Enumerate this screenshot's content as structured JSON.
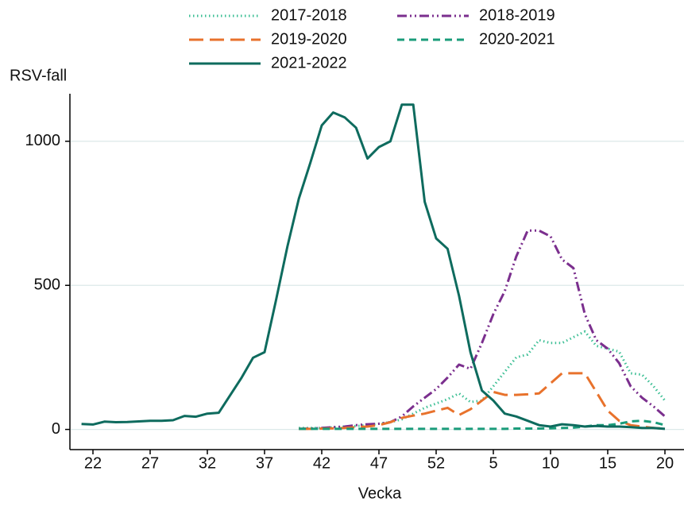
{
  "chart_data": {
    "type": "line",
    "x_label": "Vecka",
    "y_label": "RSV-fall",
    "categories": [
      null,
      "22",
      null,
      null,
      null,
      null,
      "27",
      null,
      null,
      null,
      null,
      "32",
      null,
      null,
      null,
      null,
      "37",
      null,
      null,
      null,
      null,
      "42",
      null,
      null,
      null,
      null,
      "47",
      null,
      null,
      null,
      null,
      "52",
      null,
      null,
      null,
      null,
      "5",
      null,
      null,
      null,
      null,
      "10",
      null,
      null,
      null,
      null,
      "15",
      null,
      null,
      null,
      null,
      "20"
    ],
    "ylim": [
      -70,
      1165
    ],
    "yticks": [
      0,
      500,
      1000
    ],
    "grid": true,
    "legend": "top",
    "series": [
      {
        "name": "2017-2018",
        "color": "#3dbf95",
        "dash": "dotted",
        "values": [
          null,
          null,
          null,
          null,
          null,
          null,
          null,
          null,
          null,
          null,
          null,
          null,
          null,
          null,
          null,
          null,
          null,
          null,
          null,
          5,
          5,
          5,
          7,
          10,
          12,
          15,
          20,
          25,
          35,
          55,
          75,
          90,
          105,
          125,
          95,
          100,
          150,
          200,
          250,
          260,
          310,
          300,
          300,
          320,
          340,
          290,
          280,
          270,
          195,
          190,
          150,
          100
        ]
      },
      {
        "name": "2018-2019",
        "color": "#7b2f8e",
        "dash": "dashdot",
        "values": [
          null,
          null,
          null,
          null,
          null,
          null,
          null,
          null,
          null,
          null,
          null,
          null,
          null,
          null,
          null,
          null,
          null,
          null,
          null,
          2,
          3,
          5,
          8,
          10,
          15,
          18,
          20,
          25,
          45,
          80,
          110,
          140,
          180,
          225,
          210,
          300,
          400,
          480,
          600,
          690,
          690,
          670,
          590,
          560,
          400,
          310,
          280,
          230,
          150,
          110,
          80,
          45
        ]
      },
      {
        "name": "2019-2020",
        "color": "#e8722c",
        "dash": "longdash",
        "values": [
          null,
          null,
          null,
          null,
          null,
          null,
          null,
          null,
          null,
          null,
          null,
          null,
          null,
          null,
          null,
          null,
          null,
          null,
          null,
          2,
          2,
          3,
          4,
          5,
          8,
          10,
          15,
          25,
          40,
          48,
          55,
          65,
          75,
          50,
          70,
          100,
          130,
          120,
          120,
          122,
          125,
          160,
          195,
          195,
          195,
          130,
          65,
          30,
          15,
          10,
          5,
          3
        ]
      },
      {
        "name": "2020-2021",
        "color": "#1a9c7a",
        "dash": "dash",
        "values": [
          null,
          null,
          null,
          null,
          null,
          null,
          null,
          null,
          null,
          null,
          null,
          null,
          null,
          null,
          null,
          null,
          null,
          null,
          null,
          2,
          2,
          2,
          2,
          2,
          2,
          2,
          2,
          2,
          2,
          2,
          2,
          2,
          2,
          2,
          2,
          2,
          2,
          2,
          3,
          3,
          3,
          4,
          5,
          6,
          10,
          15,
          15,
          20,
          28,
          30,
          25,
          15
        ]
      },
      {
        "name": "2021-2022",
        "color": "#0e6b5e",
        "dash": "solid",
        "values": [
          19,
          17,
          27,
          25,
          26,
          28,
          30,
          30,
          32,
          47,
          44,
          55,
          58,
          119,
          180,
          249,
          268,
          448,
          635,
          801,
          925,
          1055,
          1100,
          1083,
          1047,
          940,
          980,
          1000,
          1127,
          1127,
          790,
          663,
          627,
          464,
          268,
          135,
          100,
          55,
          45,
          30,
          15,
          10,
          18,
          15,
          10,
          12,
          10,
          10,
          8,
          5,
          5,
          2
        ]
      }
    ]
  }
}
